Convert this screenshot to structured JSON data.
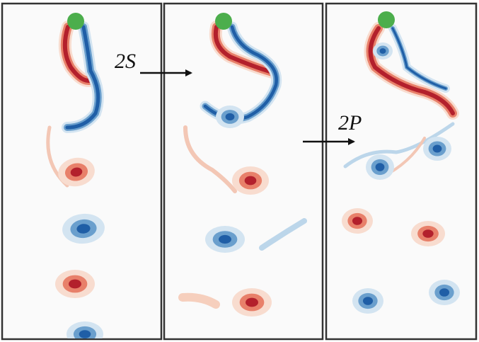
{
  "panels": [
    {
      "transition_label": "2S"
    },
    {
      "transition_label": "2P"
    }
  ]
}
